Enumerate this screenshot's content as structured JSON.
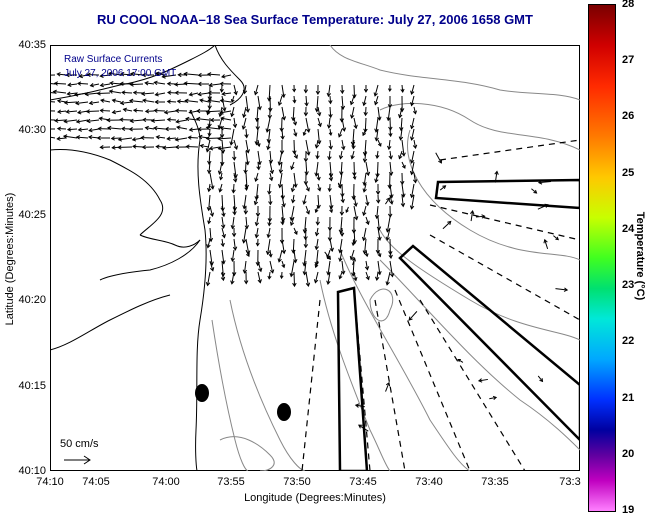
{
  "title": "RU COOL  NOAA–18  Sea Surface Temperature:  July 27, 2006 1658 GMT",
  "inset": {
    "line1": "Raw Surface Currents",
    "line2": "July 27, 2006 17:00 GMT"
  },
  "axes": {
    "xlabel": "Longitude (Degrees:Minutes)",
    "ylabel": "Latitude (Degrees:Minutes)",
    "x_ticks": [
      "74:10",
      "74:05",
      "74:00",
      "73:55",
      "73:50",
      "73:45",
      "73:40",
      "73:35",
      "73:3"
    ],
    "y_ticks": [
      "40:35",
      "40:30",
      "40:25",
      "40:20",
      "40:15",
      "40:10"
    ]
  },
  "colorbar": {
    "label": "Temperature (°C)",
    "ticks": [
      "28",
      "27",
      "26",
      "25",
      "24",
      "23",
      "22",
      "21",
      "20",
      "19"
    ]
  },
  "scale": {
    "label": "50 cm/s"
  },
  "icons": {
    "vector-arrows": "current-vector-icon",
    "scale-arrow": "scale-arrow-icon"
  }
}
